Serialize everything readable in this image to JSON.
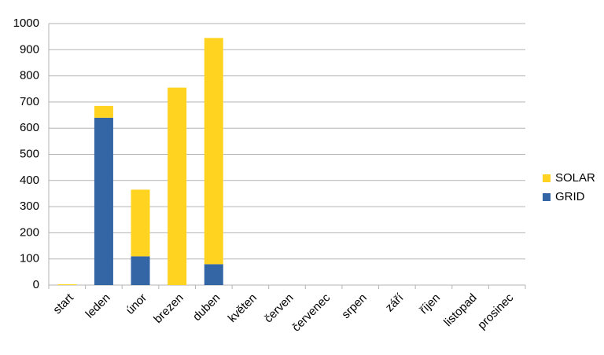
{
  "chart_data": {
    "type": "stacked_bar",
    "categories": [
      "start",
      "leden",
      "únor",
      "brezen",
      "duben",
      "květen",
      "červen",
      "červenec",
      "srpen",
      "září",
      "říjen",
      "listopad",
      "prosinec"
    ],
    "series": [
      {
        "name": "GRID",
        "color": "#3465a4",
        "values": [
          0,
          640,
          110,
          0,
          80,
          0,
          0,
          0,
          0,
          0,
          0,
          0,
          0
        ]
      },
      {
        "name": "SOLAR",
        "color": "#ffd320",
        "values": [
          3,
          45,
          255,
          755,
          865,
          0,
          0,
          0,
          0,
          0,
          0,
          0,
          0
        ]
      }
    ],
    "ylim": [
      0,
      1000
    ],
    "yticks": [
      0,
      100,
      200,
      300,
      400,
      500,
      600,
      700,
      800,
      900,
      1000
    ],
    "grid": true,
    "legend": "right"
  }
}
